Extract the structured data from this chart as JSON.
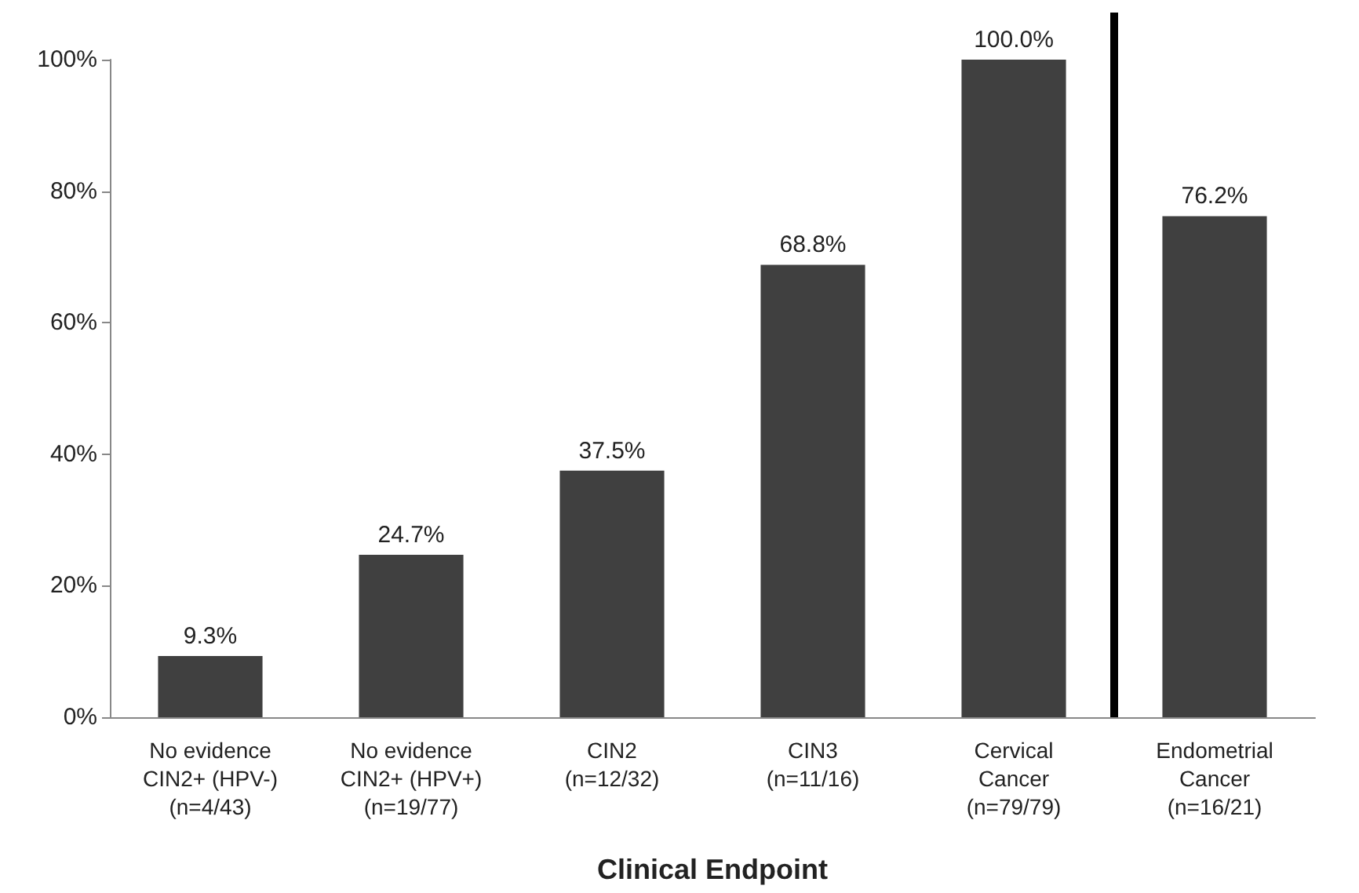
{
  "chart_data": {
    "type": "bar",
    "xlabel": "Clinical Endpoint",
    "categories": [
      "No evidence\nCIN2+ (HPV-)\n(n=4/43)",
      "No evidence\nCIN2+ (HPV+)\n(n=19/77)",
      "CIN2\n(n=12/32)",
      "CIN3\n(n=11/16)",
      "Cervical\nCancer\n(n=79/79)",
      "Endometrial\nCancer\n(n=16/21)"
    ],
    "values": [
      9.3,
      24.7,
      37.5,
      68.8,
      100.0,
      76.2
    ],
    "value_labels": [
      "9.3%",
      "24.7%",
      "37.5%",
      "68.8%",
      "100.0%",
      "76.2%"
    ],
    "color": "#404040",
    "ylim": [
      0,
      100
    ],
    "yticks": [
      {
        "value": 0,
        "label": "0%"
      },
      {
        "value": 20,
        "label": "20%"
      },
      {
        "value": 40,
        "label": "40%"
      },
      {
        "value": 60,
        "label": "60%"
      },
      {
        "value": 80,
        "label": "80%"
      },
      {
        "value": 100,
        "label": "100%"
      }
    ],
    "grid": false
  }
}
